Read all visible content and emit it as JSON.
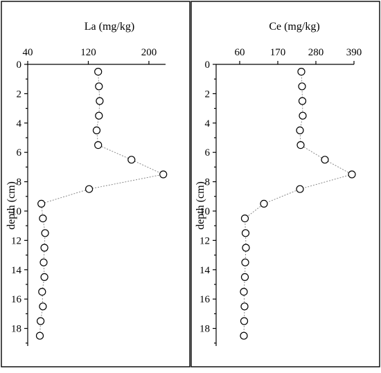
{
  "chart_data": [
    {
      "type": "line",
      "title": "La (mg/kg)",
      "xlabel": "La (mg/kg)",
      "ylabel": "depth (cm)",
      "x_ticks": [
        40,
        120,
        200
      ],
      "y_ticks": [
        0,
        2,
        4,
        6,
        8,
        10,
        12,
        14,
        16,
        18
      ],
      "xlim": [
        40,
        222
      ],
      "ylim": [
        0,
        19.2
      ],
      "y_inverted": true,
      "x_axis_position": "top",
      "grid": false,
      "series": [
        {
          "depth": [
            0.5,
            1.5,
            2.5,
            3.5,
            4.5,
            5.5,
            6.5,
            7.5,
            8.5,
            9.5,
            10.5,
            11.5,
            12.5,
            13.5,
            14.5,
            15.5,
            16.5,
            17.5,
            18.5
          ],
          "values": [
            133,
            134,
            135,
            134,
            131,
            133,
            177,
            219,
            121,
            58,
            60,
            63,
            62,
            61,
            62,
            59,
            60,
            57,
            56
          ]
        }
      ]
    },
    {
      "type": "line",
      "title": "Ce (mg/kg)",
      "xlabel": "Ce (mg/kg)",
      "ylabel": "depth (cm)",
      "x_ticks": [
        60,
        170,
        280,
        390
      ],
      "y_ticks": [
        0,
        2,
        4,
        6,
        8,
        10,
        12,
        14,
        16,
        18
      ],
      "xlim": [
        60,
        390
      ],
      "ylim": [
        0,
        19.2
      ],
      "y_inverted": true,
      "x_axis_position": "top",
      "grid": false,
      "series": [
        {
          "depth": [
            0.5,
            1.5,
            2.5,
            3.5,
            4.5,
            5.5,
            6.5,
            7.5,
            8.5,
            9.5,
            10.5,
            11.5,
            12.5,
            13.5,
            14.5,
            15.5,
            16.5,
            17.5,
            18.5
          ],
          "values": [
            238,
            240,
            241,
            242,
            234,
            236,
            306,
            384,
            234,
            130,
            75,
            77,
            78,
            76,
            75,
            72,
            74,
            73,
            72
          ]
        }
      ]
    }
  ]
}
